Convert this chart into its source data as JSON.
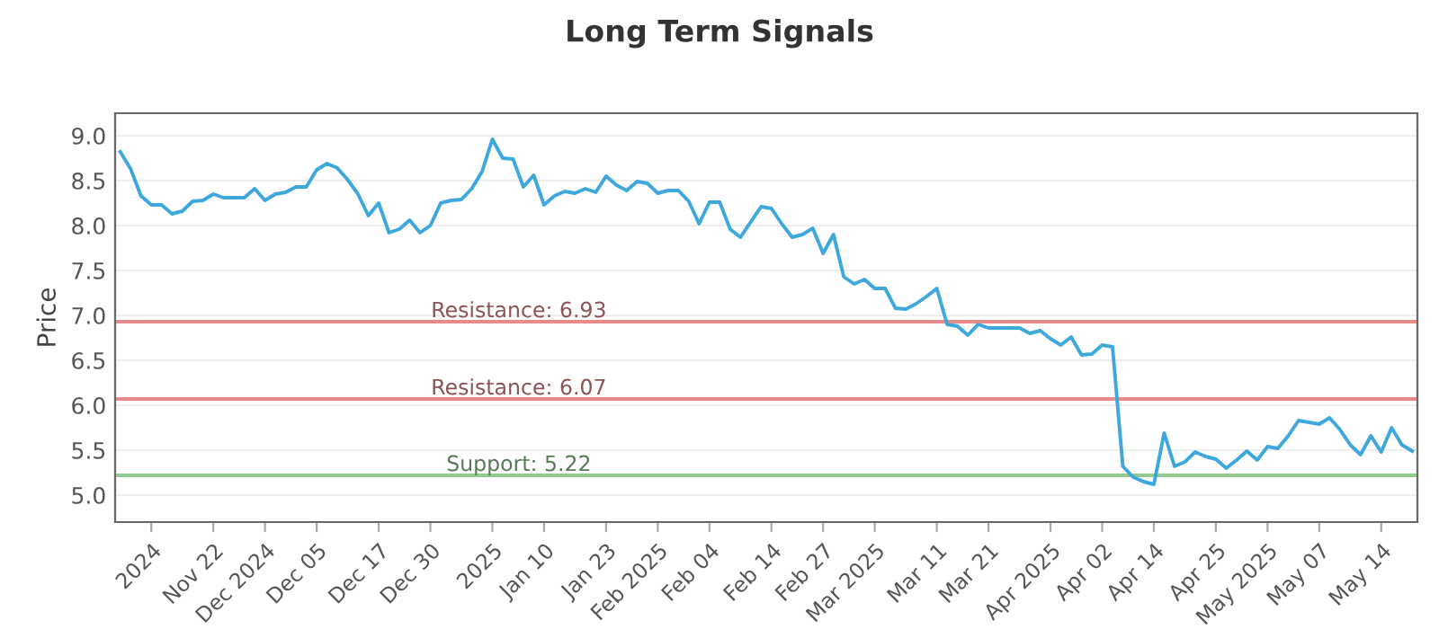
{
  "chart_data": {
    "type": "line",
    "title": "Long Term Signals",
    "ylabel": "Price",
    "categories": [
      null,
      null,
      null,
      "2024",
      null,
      null,
      null,
      null,
      null,
      "Nov 22",
      null,
      null,
      null,
      null,
      "Dec 2024",
      null,
      null,
      null,
      null,
      "Dec 05",
      null,
      null,
      null,
      null,
      null,
      "Dec 17",
      null,
      null,
      null,
      null,
      "Dec 30",
      null,
      null,
      null,
      null,
      null,
      "2025",
      null,
      null,
      null,
      null,
      "Jan 10",
      null,
      null,
      null,
      null,
      null,
      "Jan 23",
      null,
      null,
      null,
      null,
      "Feb 2025",
      null,
      null,
      null,
      null,
      "Feb 04",
      null,
      null,
      null,
      null,
      null,
      "Feb 14",
      null,
      null,
      null,
      null,
      "Feb 27",
      null,
      null,
      null,
      null,
      "Mar 2025",
      null,
      null,
      null,
      null,
      null,
      "Mar 11",
      null,
      null,
      null,
      null,
      "Mar 21",
      null,
      null,
      null,
      null,
      null,
      "Apr 2025",
      null,
      null,
      null,
      null,
      "Apr 02",
      null,
      null,
      null,
      null,
      "Apr 14",
      null,
      null,
      null,
      null,
      null,
      "Apr 25",
      null,
      null,
      null,
      null,
      "May 2025",
      null,
      null,
      null,
      null,
      "May 07",
      null,
      null,
      null,
      null,
      null,
      "May 14",
      null,
      null,
      null
    ],
    "series": [
      {
        "color": "#3ea8dd",
        "values": [
          8.82,
          8.63,
          8.33,
          8.23,
          8.23,
          8.13,
          8.16,
          8.27,
          8.28,
          8.35,
          8.31,
          8.31,
          8.31,
          8.41,
          8.28,
          8.35,
          8.37,
          8.43,
          8.43,
          8.62,
          8.69,
          8.64,
          8.51,
          8.35,
          8.11,
          8.25,
          7.92,
          7.96,
          8.06,
          7.92,
          8.0,
          8.25,
          8.28,
          8.29,
          8.41,
          8.6,
          8.96,
          8.75,
          8.74,
          8.43,
          8.56,
          8.23,
          8.33,
          8.38,
          8.36,
          8.41,
          8.37,
          8.55,
          8.45,
          8.39,
          8.49,
          8.47,
          8.36,
          8.39,
          8.39,
          8.27,
          8.02,
          8.26,
          8.26,
          7.96,
          7.87,
          8.04,
          8.21,
          8.19,
          8.02,
          7.87,
          7.9,
          7.97,
          7.69,
          7.9,
          7.43,
          7.35,
          7.4,
          7.3,
          7.3,
          7.08,
          7.07,
          7.13,
          7.21,
          7.3,
          6.9,
          6.88,
          6.78,
          6.9,
          6.86,
          6.86,
          6.86,
          6.86,
          6.8,
          6.83,
          6.74,
          6.67,
          6.76,
          6.56,
          6.57,
          6.67,
          6.65,
          5.32,
          5.2,
          5.15,
          5.12,
          5.69,
          5.32,
          5.37,
          5.48,
          5.43,
          5.4,
          5.3,
          5.39,
          5.49,
          5.39,
          5.54,
          5.52,
          5.66,
          5.83,
          5.81,
          5.79,
          5.86,
          5.73,
          5.56,
          5.45,
          5.66,
          5.48,
          5.75,
          5.56,
          5.49
        ]
      }
    ],
    "ylim": [
      4.7,
      9.25
    ],
    "yticks": [
      {
        "value": 5.0,
        "label": "5.0"
      },
      {
        "value": 5.5,
        "label": "5.5"
      },
      {
        "value": 6.0,
        "label": "6.0"
      },
      {
        "value": 6.5,
        "label": "6.5"
      },
      {
        "value": 7.0,
        "label": "7.0"
      },
      {
        "value": 7.5,
        "label": "7.5"
      },
      {
        "value": 8.0,
        "label": "8.0"
      },
      {
        "value": 8.5,
        "label": "8.5"
      },
      {
        "value": 9.0,
        "label": "9.0"
      }
    ],
    "ref_lines": [
      {
        "axis": "y",
        "value": 6.93,
        "label": "Resistance: 6.93",
        "color": "#e88a8a"
      },
      {
        "axis": "y",
        "value": 6.07,
        "label": "Resistance: 6.07",
        "color": "#e88a8a"
      },
      {
        "axis": "y",
        "value": 5.22,
        "label": "Support: 5.22",
        "color": "#90cc90"
      }
    ],
    "grid": "y",
    "legend": false,
    "marker": "none",
    "line_style": "solid"
  }
}
